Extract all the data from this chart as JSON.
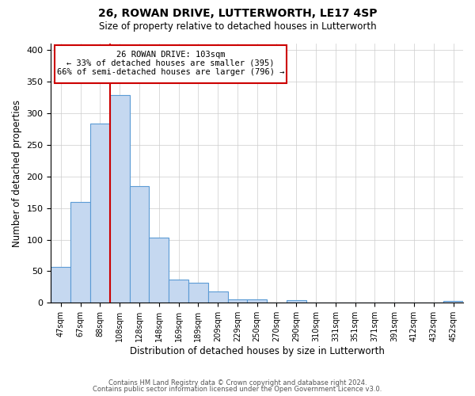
{
  "title": "26, ROWAN DRIVE, LUTTERWORTH, LE17 4SP",
  "subtitle": "Size of property relative to detached houses in Lutterworth",
  "xlabel": "Distribution of detached houses by size in Lutterworth",
  "ylabel": "Number of detached properties",
  "footer_line1": "Contains HM Land Registry data © Crown copyright and database right 2024.",
  "footer_line2": "Contains public sector information licensed under the Open Government Licence v3.0.",
  "bin_labels": [
    "47sqm",
    "67sqm",
    "88sqm",
    "108sqm",
    "128sqm",
    "148sqm",
    "169sqm",
    "189sqm",
    "209sqm",
    "229sqm",
    "250sqm",
    "270sqm",
    "290sqm",
    "310sqm",
    "331sqm",
    "351sqm",
    "371sqm",
    "391sqm",
    "412sqm",
    "432sqm",
    "452sqm"
  ],
  "bar_values": [
    57,
    160,
    283,
    328,
    185,
    103,
    37,
    32,
    18,
    6,
    5,
    0,
    4,
    0,
    0,
    0,
    0,
    0,
    0,
    0,
    3
  ],
  "bar_color": "#c5d8f0",
  "bar_edge_color": "#5b9bd5",
  "property_label": "26 ROWAN DRIVE: 103sqm",
  "annotation_line1": "← 33% of detached houses are smaller (395)",
  "annotation_line2": "66% of semi-detached houses are larger (796) →",
  "vline_color": "#cc0000",
  "annotation_box_color": "#cc0000",
  "ylim": [
    0,
    410
  ],
  "yticks": [
    0,
    50,
    100,
    150,
    200,
    250,
    300,
    350,
    400
  ],
  "background_color": "#ffffff",
  "grid_color": "#cccccc"
}
